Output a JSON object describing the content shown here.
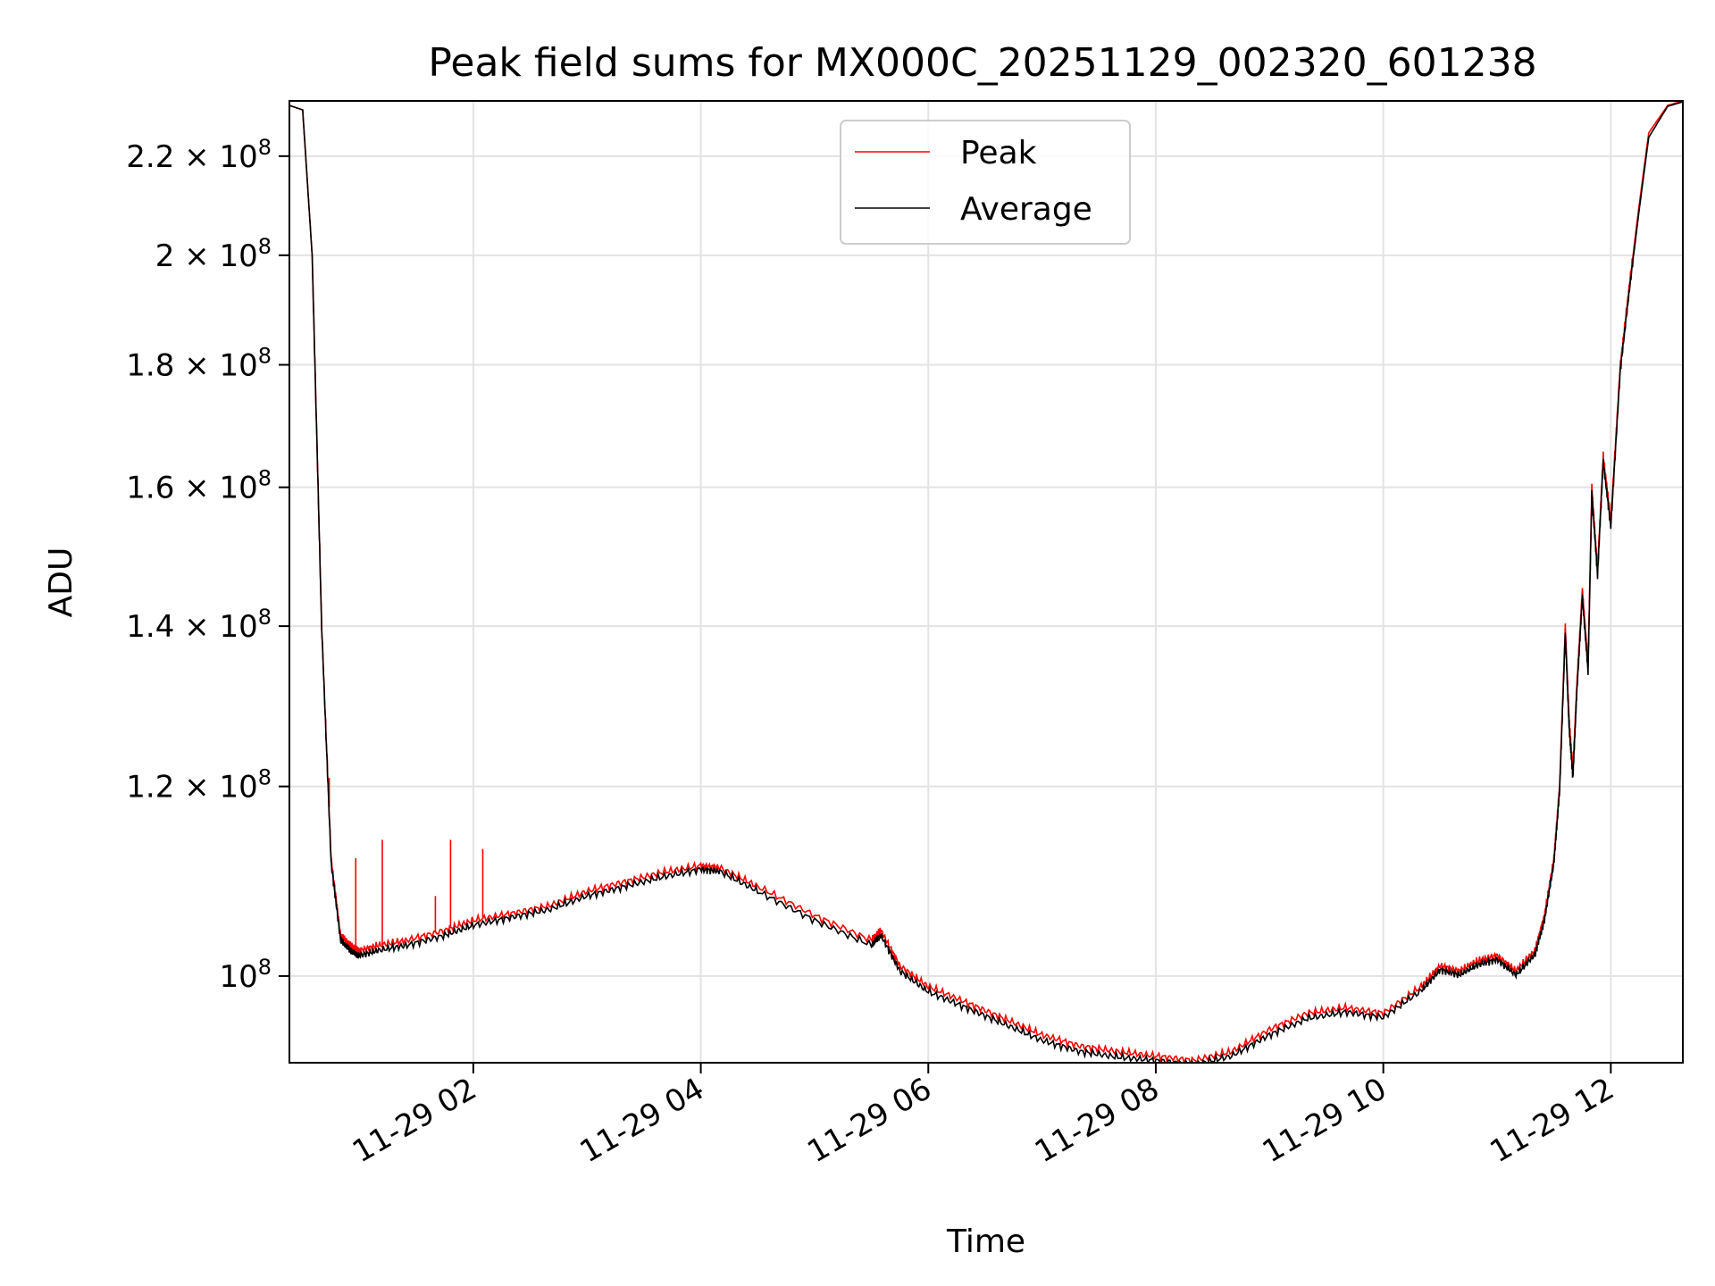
{
  "chart_data": {
    "type": "line",
    "title": "Peak field sums for MX000C_20251129_002320_601238",
    "xlabel": "Time",
    "ylabel": "ADU",
    "yscale": "log",
    "grid": true,
    "legend_position": "upper center",
    "xlim": [
      "2025-11-29 00:23",
      "2025-11-29 12:38"
    ],
    "ylim": [
      92000000,
      232000000
    ],
    "x_tick_labels": [
      "11-29 02",
      "11-29 04",
      "11-29 06",
      "11-29 08",
      "11-29 10",
      "11-29 12"
    ],
    "x_tick_values": [
      "2025-11-29 02:00",
      "2025-11-29 04:00",
      "2025-11-29 06:00",
      "2025-11-29 08:00",
      "2025-11-29 10:00",
      "2025-11-29 12:00"
    ],
    "y_ticks": [
      {
        "value": 100000000,
        "mantissa": "",
        "exponent": "8"
      },
      {
        "value": 120000000,
        "mantissa": "1.2",
        "exponent": "8"
      },
      {
        "value": 140000000,
        "mantissa": "1.4",
        "exponent": "8"
      },
      {
        "value": 160000000,
        "mantissa": "1.6",
        "exponent": "8"
      },
      {
        "value": 180000000,
        "mantissa": "1.8",
        "exponent": "8"
      },
      {
        "value": 200000000,
        "mantissa": "2",
        "exponent": "8"
      },
      {
        "value": 220000000,
        "mantissa": "2.2",
        "exponent": "8"
      }
    ],
    "series": [
      {
        "name": "Peak",
        "color": "#ff0000",
        "x": [
          "2025-11-29 00:23",
          "2025-11-29 00:30",
          "2025-11-29 00:35",
          "2025-11-29 00:40",
          "2025-11-29 00:45",
          "2025-11-29 00:50",
          "2025-11-29 00:55",
          "2025-11-29 01:00",
          "2025-11-29 01:10",
          "2025-11-29 01:25",
          "2025-11-29 01:45",
          "2025-11-29 02:00",
          "2025-11-29 02:20",
          "2025-11-29 02:40",
          "2025-11-29 03:00",
          "2025-11-29 03:20",
          "2025-11-29 03:40",
          "2025-11-29 04:00",
          "2025-11-29 04:10",
          "2025-11-29 04:30",
          "2025-11-29 05:00",
          "2025-11-29 05:30",
          "2025-11-29 05:35",
          "2025-11-29 05:45",
          "2025-11-29 06:00",
          "2025-11-29 06:20",
          "2025-11-29 06:40",
          "2025-11-29 07:00",
          "2025-11-29 07:20",
          "2025-11-29 07:40",
          "2025-11-29 08:00",
          "2025-11-29 08:20",
          "2025-11-29 08:40",
          "2025-11-29 09:00",
          "2025-11-29 09:20",
          "2025-11-29 09:40",
          "2025-11-29 10:00",
          "2025-11-29 10:20",
          "2025-11-29 10:30",
          "2025-11-29 10:40",
          "2025-11-29 10:50",
          "2025-11-29 11:00",
          "2025-11-29 11:10",
          "2025-11-29 11:20",
          "2025-11-29 11:25",
          "2025-11-29 11:30",
          "2025-11-29 11:33",
          "2025-11-29 11:36",
          "2025-11-29 11:38",
          "2025-11-29 11:40",
          "2025-11-29 11:42",
          "2025-11-29 11:45",
          "2025-11-29 11:48",
          "2025-11-29 11:50",
          "2025-11-29 11:53",
          "2025-11-29 11:56",
          "2025-11-29 12:00",
          "2025-11-29 12:05",
          "2025-11-29 12:10",
          "2025-11-29 12:15",
          "2025-11-29 12:20",
          "2025-11-29 12:30",
          "2025-11-29 12:38"
        ],
        "values": [
          231000000,
          230000000,
          200000000,
          140000000,
          112000000,
          104000000,
          103000000,
          102500000,
          103000000,
          103500000,
          104500000,
          105500000,
          106200000,
          107000000,
          108500000,
          109500000,
          110500000,
          111200000,
          111000000,
          109000000,
          106000000,
          103500000,
          104500000,
          101000000,
          99000000,
          97500000,
          96000000,
          94500000,
          93500000,
          93000000,
          92600000,
          92200000,
          93000000,
          95000000,
          96500000,
          97000000,
          96500000,
          99000000,
          101000000,
          100500000,
          101500000,
          102000000,
          100500000,
          102500000,
          106000000,
          112000000,
          120000000,
          140000000,
          128000000,
          122000000,
          132000000,
          145000000,
          135000000,
          160000000,
          148000000,
          165000000,
          155000000,
          180000000,
          195000000,
          210000000,
          225000000,
          231000000,
          232000000
        ]
      },
      {
        "name": "Average",
        "color": "#000000",
        "x": [
          "2025-11-29 00:23",
          "2025-11-29 00:30",
          "2025-11-29 00:35",
          "2025-11-29 00:40",
          "2025-11-29 00:45",
          "2025-11-29 00:50",
          "2025-11-29 00:55",
          "2025-11-29 01:00",
          "2025-11-29 01:10",
          "2025-11-29 01:25",
          "2025-11-29 01:45",
          "2025-11-29 02:00",
          "2025-11-29 02:20",
          "2025-11-29 02:40",
          "2025-11-29 03:00",
          "2025-11-29 03:20",
          "2025-11-29 03:40",
          "2025-11-29 04:00",
          "2025-11-29 04:10",
          "2025-11-29 04:30",
          "2025-11-29 05:00",
          "2025-11-29 05:30",
          "2025-11-29 05:35",
          "2025-11-29 05:45",
          "2025-11-29 06:00",
          "2025-11-29 06:20",
          "2025-11-29 06:40",
          "2025-11-29 07:00",
          "2025-11-29 07:20",
          "2025-11-29 07:40",
          "2025-11-29 08:00",
          "2025-11-29 08:20",
          "2025-11-29 08:40",
          "2025-11-29 09:00",
          "2025-11-29 09:20",
          "2025-11-29 09:40",
          "2025-11-29 10:00",
          "2025-11-29 10:20",
          "2025-11-29 10:30",
          "2025-11-29 10:40",
          "2025-11-29 10:50",
          "2025-11-29 11:00",
          "2025-11-29 11:10",
          "2025-11-29 11:20",
          "2025-11-29 11:25",
          "2025-11-29 11:30",
          "2025-11-29 11:33",
          "2025-11-29 11:36",
          "2025-11-29 11:38",
          "2025-11-29 11:40",
          "2025-11-29 11:42",
          "2025-11-29 11:45",
          "2025-11-29 11:48",
          "2025-11-29 11:50",
          "2025-11-29 11:53",
          "2025-11-29 11:56",
          "2025-11-29 12:00",
          "2025-11-29 12:05",
          "2025-11-29 12:10",
          "2025-11-29 12:15",
          "2025-11-29 12:20",
          "2025-11-29 12:30",
          "2025-11-29 12:38"
        ],
        "values": [
          231000000,
          230000000,
          200000000,
          140000000,
          111500000,
          103500000,
          102500000,
          102000000,
          102500000,
          103000000,
          104000000,
          105000000,
          105800000,
          106600000,
          108000000,
          109000000,
          110000000,
          110800000,
          110600000,
          108500000,
          105500000,
          103000000,
          104000000,
          100500000,
          98500000,
          97000000,
          95500000,
          94000000,
          93000000,
          92500000,
          92200000,
          91800000,
          92600000,
          94500000,
          96000000,
          96600000,
          96100000,
          98600000,
          100600000,
          100100000,
          101100000,
          101600000,
          100100000,
          102100000,
          105500000,
          111500000,
          119500000,
          139000000,
          127000000,
          121000000,
          131000000,
          144000000,
          134000000,
          159000000,
          147000000,
          164000000,
          154000000,
          179000000,
          194000000,
          209000000,
          224000000,
          230800000,
          231800000
        ]
      }
    ],
    "peak_spikes": [
      {
        "x": "2025-11-29 00:44",
        "value": 121000000
      },
      {
        "x": "2025-11-29 00:58",
        "value": 112000000
      },
      {
        "x": "2025-11-29 01:12",
        "value": 114000000
      },
      {
        "x": "2025-11-29 01:40",
        "value": 108000000
      },
      {
        "x": "2025-11-29 01:48",
        "value": 114000000
      },
      {
        "x": "2025-11-29 02:05",
        "value": 113000000
      }
    ]
  }
}
